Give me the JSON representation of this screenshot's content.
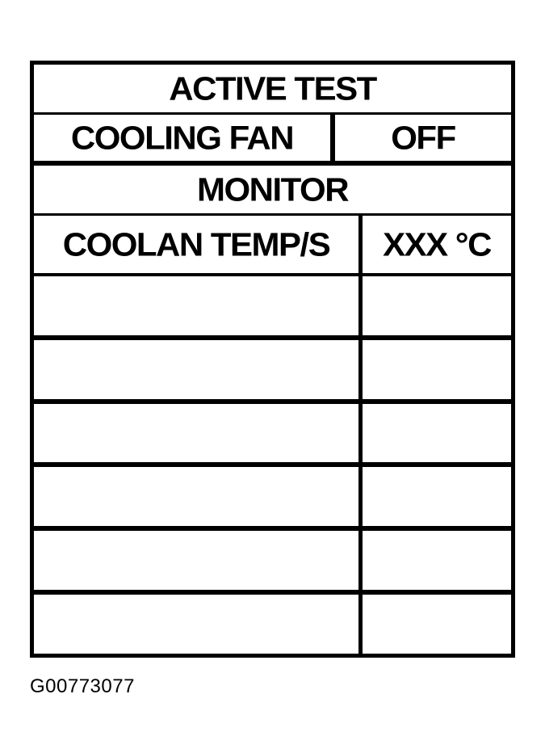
{
  "figure": {
    "caption": "G00773077",
    "table": {
      "active_test_header": "ACTIVE TEST",
      "active_test_row": {
        "item": "COOLING FAN",
        "value": "OFF"
      },
      "monitor_header": "MONITOR",
      "monitor_row": {
        "item": "COOLAN TEMP/S",
        "value": "XXX °C"
      },
      "empty_row_count": 6
    },
    "colors": {
      "ink": "#000000",
      "paper": "#ffffff"
    }
  }
}
